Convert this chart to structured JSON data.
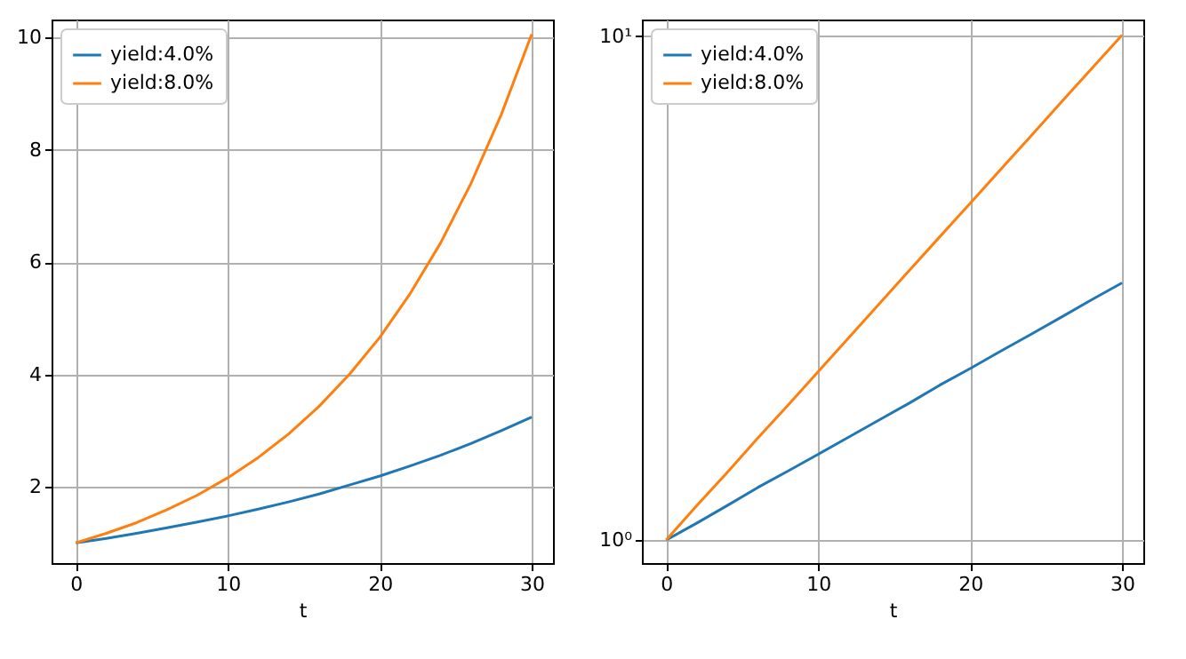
{
  "chart_data": [
    {
      "type": "line",
      "xlabel": "t",
      "x": [
        0,
        2,
        4,
        6,
        8,
        10,
        12,
        14,
        16,
        18,
        20,
        22,
        24,
        26,
        28,
        30
      ],
      "series": [
        {
          "name": "yield:4.0%",
          "color": "#1f77b4",
          "values": [
            1,
            1.08,
            1.17,
            1.27,
            1.37,
            1.48,
            1.6,
            1.73,
            1.87,
            2.03,
            2.19,
            2.37,
            2.56,
            2.77,
            3,
            3.24
          ]
        },
        {
          "name": "yield:8.0%",
          "color": "#ff7f0e",
          "values": [
            1,
            1.17,
            1.36,
            1.59,
            1.85,
            2.16,
            2.52,
            2.94,
            3.43,
            4,
            4.66,
            5.44,
            6.34,
            7.4,
            8.63,
            10.06
          ]
        }
      ],
      "xlim": [
        -1.6,
        31.4
      ],
      "xticks": [
        0,
        10,
        20,
        30
      ],
      "ylim": [
        0.64,
        10.32
      ],
      "yticks": [
        2,
        4,
        6,
        8,
        10
      ],
      "grid": true,
      "legend": "top left"
    },
    {
      "type": "line",
      "xlabel": "t",
      "x": [
        0,
        2,
        4,
        6,
        8,
        10,
        12,
        14,
        16,
        18,
        20,
        22,
        24,
        26,
        28,
        30
      ],
      "series": [
        {
          "name": "yield:4.0%",
          "color": "#1f77b4",
          "values": [
            1,
            1.08,
            1.17,
            1.27,
            1.37,
            1.48,
            1.6,
            1.73,
            1.87,
            2.03,
            2.19,
            2.37,
            2.56,
            2.77,
            3,
            3.24
          ]
        },
        {
          "name": "yield:8.0%",
          "color": "#ff7f0e",
          "values": [
            1,
            1.17,
            1.36,
            1.59,
            1.85,
            2.16,
            2.52,
            2.94,
            3.43,
            4,
            4.66,
            5.44,
            6.34,
            7.4,
            8.63,
            10.06
          ]
        }
      ],
      "xlim": [
        -1.6,
        31.4
      ],
      "xticks": [
        0,
        10,
        20,
        30
      ],
      "ylim": [
        0.9,
        10.8
      ],
      "yticks": [
        {
          "value": 1,
          "label": "10⁰"
        },
        {
          "value": 10,
          "label": "10¹"
        }
      ],
      "log": "y",
      "grid": true,
      "legend": "top left"
    }
  ]
}
